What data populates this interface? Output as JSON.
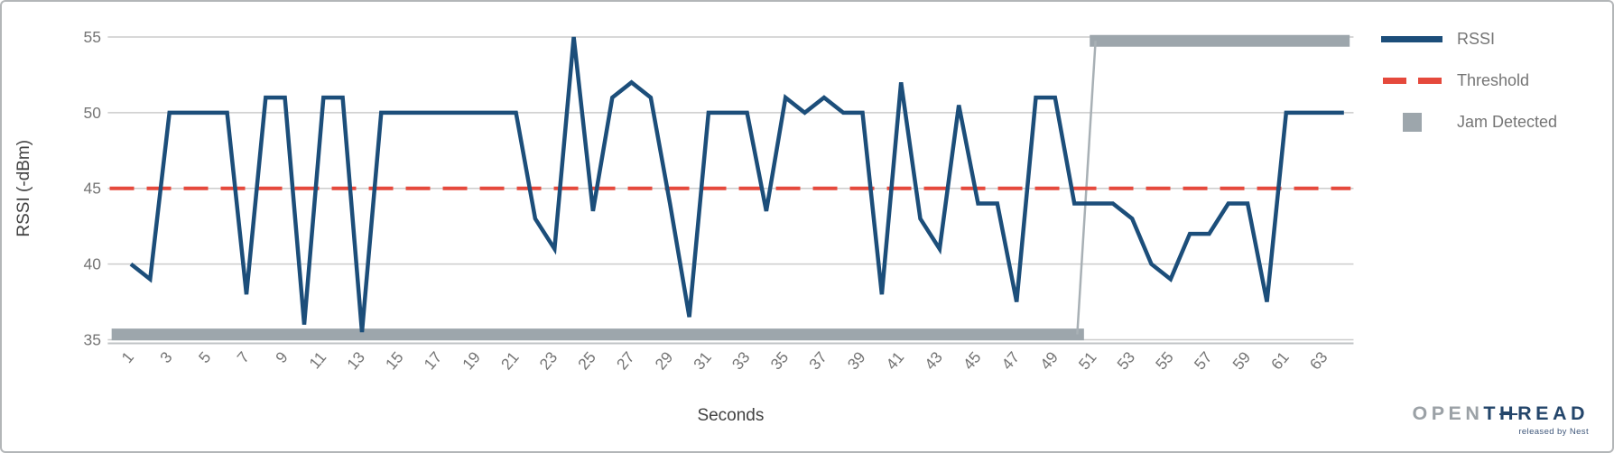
{
  "colors": {
    "rssi_blue": "#1c4e7a",
    "threshold_red": "#e5493c",
    "jam_gray": "#9da6ac",
    "jam_connector_gray": "#a8b0b5",
    "gridline_gray": "#cccccc",
    "axisline_gray": "#c0c3c5",
    "tick_text_gray": "#757575",
    "axis_title_gray": "#424242",
    "logo_gray": "#9ba1a6",
    "logo_navy": "#24466b"
  },
  "chart_data": {
    "type": "line",
    "title": "",
    "xlabel": "Seconds",
    "ylabel": "RSSI (-dBm)",
    "grid": "horizontal",
    "legend_position": "right-top",
    "xlim": [
      -0.2,
      64.5
    ],
    "ylim": [
      35,
      55
    ],
    "y_ticks": [
      35,
      40,
      45,
      50,
      55
    ],
    "x_ticks": [
      1,
      3,
      5,
      7,
      9,
      11,
      13,
      15,
      17,
      19,
      21,
      23,
      25,
      27,
      29,
      31,
      33,
      35,
      37,
      39,
      41,
      43,
      45,
      47,
      49,
      51,
      53,
      55,
      57,
      59,
      61,
      63
    ],
    "x": [
      1,
      2,
      3,
      4,
      5,
      6,
      7,
      8,
      9,
      10,
      11,
      12,
      13,
      14,
      15,
      16,
      17,
      18,
      19,
      20,
      21,
      22,
      23,
      24,
      25,
      26,
      27,
      28,
      29,
      30,
      31,
      32,
      33,
      34,
      35,
      36,
      37,
      38,
      39,
      40,
      41,
      42,
      43,
      44,
      45,
      46,
      47,
      48,
      49,
      50,
      51,
      52,
      53,
      54,
      55,
      56,
      57,
      58,
      59,
      60,
      61,
      62,
      63,
      64
    ],
    "series": [
      {
        "name": "RSSI",
        "type": "line",
        "values": [
          40,
          39,
          50,
          50,
          50,
          50,
          38,
          51,
          51,
          36,
          51,
          51,
          35.5,
          50,
          50,
          50,
          50,
          50,
          50,
          50,
          50,
          43,
          41,
          55,
          43.5,
          51,
          52,
          51,
          44,
          36.5,
          50,
          50,
          50,
          43.5,
          51,
          50,
          51,
          50,
          50,
          38,
          52,
          43,
          41,
          50.5,
          44,
          44,
          37.5,
          51,
          51,
          44,
          44,
          44,
          43,
          40,
          39,
          42,
          42,
          44,
          44,
          37.5,
          50,
          50,
          50,
          50
        ]
      },
      {
        "name": "Threshold",
        "type": "dashed-horizontal-line",
        "value": 45,
        "x_start": -0.1,
        "x_end": 64.35
      },
      {
        "name": "Jam Detected",
        "type": "thick-segments",
        "segments": [
          {
            "x_start": 0,
            "x_end": 50.5,
            "value": 35.35
          },
          {
            "x_start": 50.8,
            "x_end": 64.3,
            "value": 54.75
          }
        ],
        "connector": {
          "from_x": 50.15,
          "from_value": 35.35,
          "to_x": 51.1,
          "to_value": 54.75
        }
      }
    ]
  },
  "legend": {
    "items": [
      {
        "label": "RSSI",
        "swatch": "blue-line"
      },
      {
        "label": "Threshold",
        "swatch": "red-dashes"
      },
      {
        "label": "Jam Detected",
        "swatch": "gray-square"
      }
    ]
  },
  "axis": {
    "xlabel": "Seconds",
    "ylabel": "RSSI (-dBm)"
  },
  "logo": {
    "prefix": "OPEN",
    "t": "T",
    "h": "H",
    "rest": "READ",
    "tagline": "released by Nest"
  }
}
